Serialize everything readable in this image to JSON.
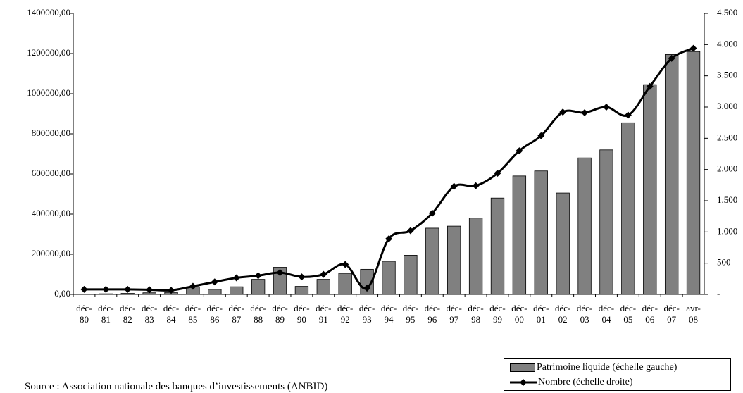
{
  "chart_data": {
    "type": "bar-line",
    "categories": [
      "déc-80",
      "déc-81",
      "déc-82",
      "déc-83",
      "déc-84",
      "déc-85",
      "déc-86",
      "déc-87",
      "déc-88",
      "déc-89",
      "déc-90",
      "déc-91",
      "déc-92",
      "déc-93",
      "déc-94",
      "déc-95",
      "déc-96",
      "déc-97",
      "déc-98",
      "déc-99",
      "déc-00",
      "déc-01",
      "déc-02",
      "déc-03",
      "déc-04",
      "déc-05",
      "déc-06",
      "déc-07",
      "avr-08"
    ],
    "series": [
      {
        "name": "Patrimoine liquide (échelle gauche)",
        "type": "bar",
        "color": "#808080",
        "values": [
          2000,
          3000,
          5000,
          8000,
          10000,
          38000,
          25000,
          38000,
          75000,
          135000,
          40000,
          75000,
          105000,
          125000,
          165000,
          195000,
          330000,
          340000,
          380000,
          480000,
          590000,
          615000,
          505000,
          680000,
          720000,
          855000,
          1045000,
          1195000,
          1210000
        ]
      },
      {
        "name": "Nombre (échelle droite)",
        "type": "line",
        "axis": "y2",
        "color": "#000000",
        "values": [
          80,
          80,
          80,
          75,
          65,
          130,
          200,
          265,
          300,
          350,
          280,
          320,
          480,
          100,
          890,
          1020,
          1300,
          1730,
          1740,
          1940,
          2300,
          2540,
          2920,
          2910,
          3000,
          2870,
          3330,
          3780,
          3940
        ]
      }
    ],
    "ylim": [
      0,
      1400000
    ],
    "yticks": [
      {
        "value": 0,
        "label": "0,00"
      },
      {
        "value": 200000,
        "label": "200000,00"
      },
      {
        "value": 400000,
        "label": "400000,00"
      },
      {
        "value": 600000,
        "label": "600000,00"
      },
      {
        "value": 800000,
        "label": "800000,00"
      },
      {
        "value": 1000000,
        "label": "1000000,00"
      },
      {
        "value": 1200000,
        "label": "1200000,00"
      },
      {
        "value": 1400000,
        "label": "1400000,00"
      }
    ],
    "y2lim": [
      0,
      4500
    ],
    "y2ticks": [
      {
        "value": 0,
        "label": "-"
      },
      500,
      {
        "value": 1000,
        "label": "1.000"
      },
      {
        "value": 1500,
        "label": "1.500"
      },
      {
        "value": 2000,
        "label": "2.000"
      },
      {
        "value": 2500,
        "label": "2.500"
      },
      {
        "value": 3000,
        "label": "3.000"
      },
      {
        "value": 3500,
        "label": "3.500"
      },
      {
        "value": 4000,
        "label": "4.000"
      },
      {
        "value": 4500,
        "label": "4.500"
      }
    ],
    "source": "Source : Association nationale des banques d’investissements (ANBID)"
  }
}
